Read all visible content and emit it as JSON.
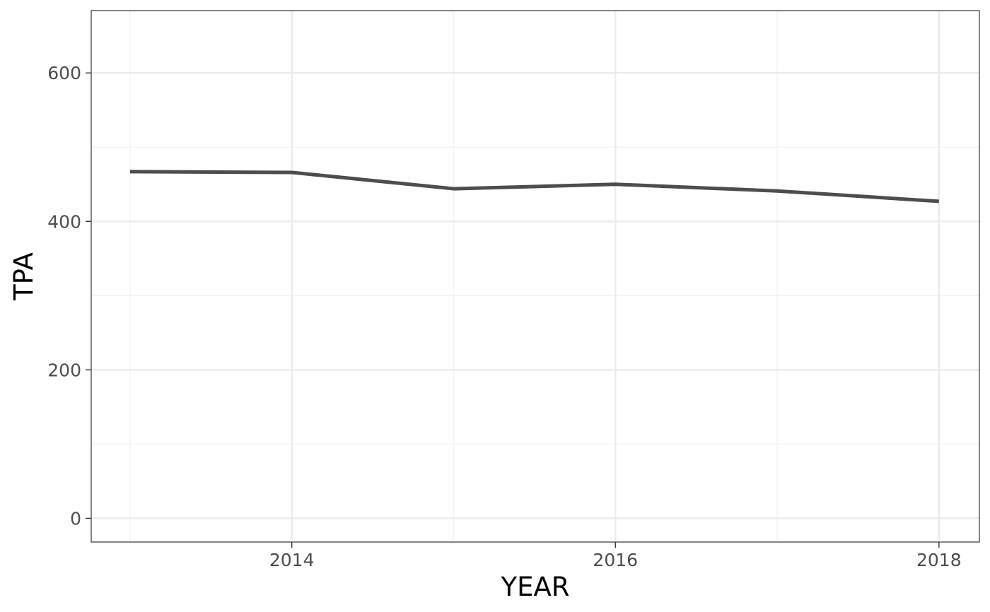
{
  "chart_data": {
    "type": "line",
    "title": "",
    "xlabel": "YEAR",
    "ylabel": "TPA",
    "x": [
      2013,
      2014,
      2015,
      2016,
      2017,
      2018
    ],
    "series": [
      {
        "values": [
          467,
          466,
          444,
          450,
          441,
          427
        ]
      }
    ],
    "xlim": [
      2012.76,
      2018.25
    ],
    "ylim": [
      -32,
      684
    ],
    "x_ticks": [
      2014,
      2016,
      2018
    ],
    "x_tick_labels": [
      "2014",
      "2016",
      "2018"
    ],
    "y_ticks": [
      0,
      200,
      400,
      600
    ],
    "y_tick_labels": [
      "0",
      "200",
      "400",
      "600"
    ],
    "grid": true,
    "legend": "none",
    "colors": {
      "line": "#4d4d4d",
      "grid_major": "#ebebeb",
      "grid_minor": "#f2f2f2",
      "panel_border": "#333333",
      "background": "#ffffff"
    }
  }
}
